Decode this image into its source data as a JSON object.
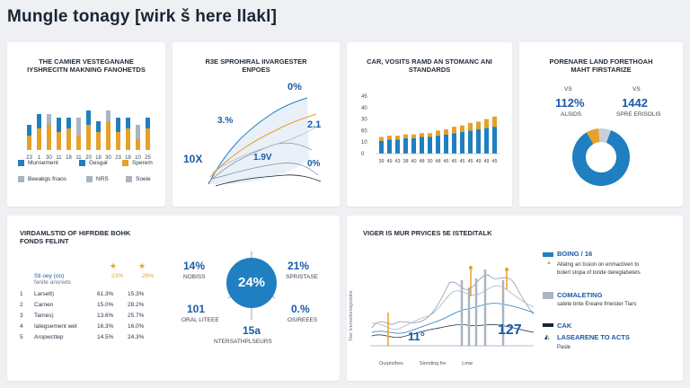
{
  "page": {
    "title": "Mungle tonagy [wirk š here llakl]"
  },
  "colors": {
    "blue": "#1f7fc0",
    "orange": "#e5a12a",
    "gray": "#aab4c2",
    "dark": "#1a2433"
  },
  "card1": {
    "title_line1": "THE CAMIER VESTEGANANE",
    "title_line2": "IYSHRECITN MAKNING FANOHETDS",
    "x_labels": [
      "23",
      "1",
      "30",
      "11",
      "18",
      "11",
      "20",
      "18",
      "30",
      "23",
      "18",
      "10",
      "25"
    ],
    "legend": [
      {
        "label": "Munsement",
        "color": "#1f7fc0"
      },
      {
        "label": "Gesgal",
        "color": "#1f7fc0"
      },
      {
        "label": "Sperem",
        "color": "#e5a12a"
      },
      {
        "label": "Beeakgs fnaos",
        "color": "#aab4c2"
      },
      {
        "label": "NRS",
        "color": "#aab4c2"
      },
      {
        "label": "Soeie",
        "color": "#aab4c2"
      }
    ],
    "chart_data": {
      "type": "bar",
      "categories": [
        "23",
        "1",
        "30",
        "11",
        "18",
        "11",
        "20",
        "18",
        "30",
        "23",
        "18",
        "10",
        "25"
      ],
      "series": [
        {
          "name": "Munsement",
          "values": [
            4,
            6,
            7,
            5,
            6,
            4,
            7,
            5,
            8,
            5,
            6,
            3,
            6
          ]
        },
        {
          "name": "Sperem",
          "values": [
            3,
            4,
            3,
            4,
            3,
            5,
            4,
            3,
            3,
            4,
            3,
            4,
            3
          ]
        }
      ]
    }
  },
  "card2": {
    "title_line1": "R3E SPROHIRAL IIVARGESTER",
    "title_line2": "ENPOES",
    "labels": [
      "0%",
      "3.%",
      "2.1",
      "10X",
      "1.9V",
      "0%"
    ]
  },
  "card3": {
    "title_line1": "CAR, VOSITS RAMD AN STOMANC ANI",
    "title_line2": "STANDARDS",
    "y_labels": [
      "45",
      "40",
      "30",
      "60",
      "10",
      "0"
    ],
    "x_labels": [
      "39",
      "49",
      "43",
      "38",
      "40",
      "48",
      "30",
      "48",
      "45",
      "45",
      "45",
      "45",
      "49",
      "49",
      "45"
    ],
    "chart_data": {
      "type": "bar",
      "categories": [
        "39",
        "49",
        "43",
        "38",
        "40",
        "48",
        "30",
        "48",
        "45",
        "45",
        "45",
        "45",
        "49",
        "49",
        "45"
      ],
      "ylim": [
        0,
        45
      ],
      "series": [
        {
          "name": "Blue",
          "values": [
            10,
            11,
            11,
            12,
            12,
            13,
            13,
            14,
            15,
            16,
            17,
            18,
            19,
            20,
            21
          ]
        },
        {
          "name": "Orange",
          "values": [
            3,
            3,
            3,
            3,
            3,
            3,
            3,
            4,
            4,
            5,
            5,
            6,
            6,
            7,
            8
          ]
        }
      ]
    }
  },
  "card4": {
    "title_line1": "PORENARE LAND FORETHOAH",
    "title_line2": "MAHT FIRSTARIZE",
    "left_small": "VS",
    "left_big": "112%",
    "left_sub": "ALSIDS",
    "right_small": "VS",
    "right_big": "1442",
    "right_sub": "SPRE ERISOLIS",
    "chart_data": {
      "type": "pie",
      "slices": [
        {
          "label": "Blue",
          "value": 86,
          "color": "#1f7fc0"
        },
        {
          "label": "Orange",
          "value": 7,
          "color": "#e5a12a"
        },
        {
          "label": "Gray",
          "value": 7,
          "color": "#c8cfd8"
        }
      ]
    }
  },
  "card5": {
    "title_line1": "VIRDAMLSTID OF HIFRDBE BOHK",
    "title_line2": "FONDS FELINT",
    "table_header": [
      "Sti oey (oo)",
      "23%",
      "20%"
    ],
    "table_header_sub": "fanite ansreds",
    "rows": [
      {
        "num": "1",
        "label": "Larsett)",
        "a": "61.3%",
        "b": "15.3%"
      },
      {
        "num": "2",
        "label": "Carnen",
        "a": "15.0%",
        "b": "28.2%"
      },
      {
        "num": "3",
        "label": "Tarnes)",
        "a": "13.6%",
        "b": "25.7%"
      },
      {
        "num": "4",
        "label": "Iategsement wet",
        "a": "16.3%",
        "b": "16.0%"
      },
      {
        "num": "5",
        "label": "Aropwcttep",
        "a": "14.5%",
        "b": "24.3%"
      }
    ],
    "center_value": "24%",
    "spokes": [
      {
        "value": "14%",
        "sub": "NOBISS"
      },
      {
        "value": "21%",
        "sub": "SPRISTASE"
      },
      {
        "value": "101",
        "sub": "ORAL LITEEE"
      },
      {
        "value": "0.%",
        "sub": "OSIREEES"
      },
      {
        "value": "15a",
        "sub": "NTERSATHPLSEURS"
      }
    ]
  },
  "card6": {
    "title": "VIGER IS MUR PRVICES 5E ISTEDITALK",
    "y_axis_label": "Ster lversetionsigsdoks",
    "value_a": "11°",
    "value_b": "127",
    "x_legend": [
      "Ourplo/bes",
      "Sionding fre",
      "Lmw"
    ],
    "items": [
      {
        "heading": "BOING / 16",
        "text1": "Allatng an tssion on enmactiven to",
        "text2": "bolert stopa of tonde dereglabetets"
      },
      {
        "heading": "COMALETING",
        "text1": "satete bnte Ereane fmeister Tiars",
        "text2": ""
      },
      {
        "heading": "CAK",
        "text1": "",
        "text2": ""
      },
      {
        "heading": "LASEARENE TO ACTS",
        "text1": "Pasle",
        "text2": ""
      }
    ]
  }
}
